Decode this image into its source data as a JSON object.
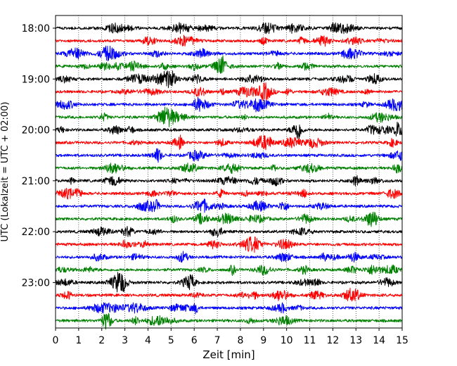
{
  "chart_data": {
    "type": "line",
    "description": "",
    "xlabel": "Zeit  [min]",
    "ylabel": "UTC (Lokalzeit = UTC + 02:00)",
    "xlim": [
      0,
      15
    ],
    "x_ticks": [
      0,
      1,
      2,
      3,
      4,
      5,
      6,
      7,
      8,
      9,
      10,
      11,
      12,
      13,
      14,
      15
    ],
    "y_ticks": [
      "18:00",
      "19:00",
      "20:00",
      "21:00",
      "22:00",
      "23:00"
    ],
    "trace_minutes": 15,
    "start_time": "18:00",
    "end_time": "23:45",
    "grid_x": true,
    "colors": [
      "#000000",
      "#ff0000",
      "#0000ff",
      "#008000"
    ]
  }
}
